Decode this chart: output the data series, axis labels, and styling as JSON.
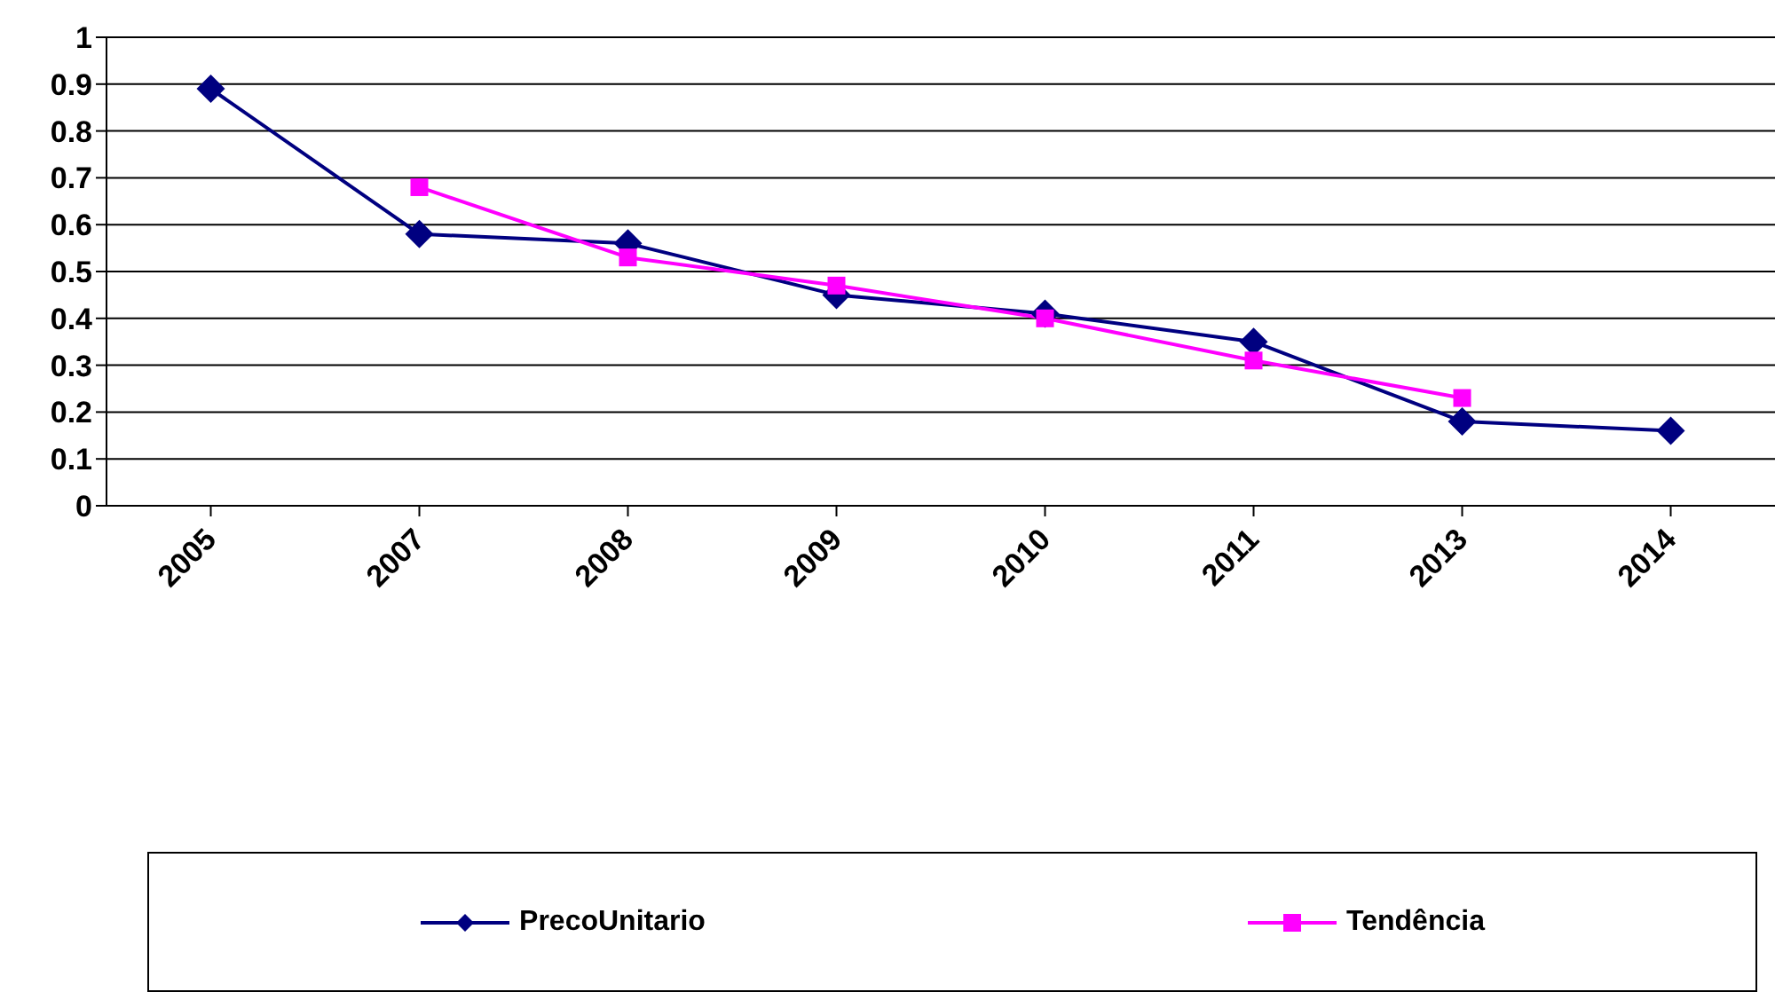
{
  "chart_data": {
    "type": "line",
    "categories": [
      "2005",
      "2007",
      "2008",
      "2009",
      "2010",
      "2011",
      "2013",
      "2014"
    ],
    "series": [
      {
        "name": "PrecoUnitario",
        "color": "#000080",
        "marker": "diamond",
        "values": [
          0.89,
          0.58,
          0.56,
          0.45,
          0.41,
          0.35,
          0.18,
          0.16
        ]
      },
      {
        "name": "Tendência",
        "color": "#ff00ff",
        "marker": "square",
        "values": [
          null,
          0.68,
          0.53,
          0.47,
          0.4,
          0.31,
          0.23,
          null
        ]
      }
    ],
    "ylim": [
      0,
      1
    ],
    "yticks": [
      0,
      0.1,
      0.2,
      0.3,
      0.4,
      0.5,
      0.6,
      0.7,
      0.8,
      0.9,
      1
    ],
    "grid": "y",
    "legend": "bottom"
  }
}
